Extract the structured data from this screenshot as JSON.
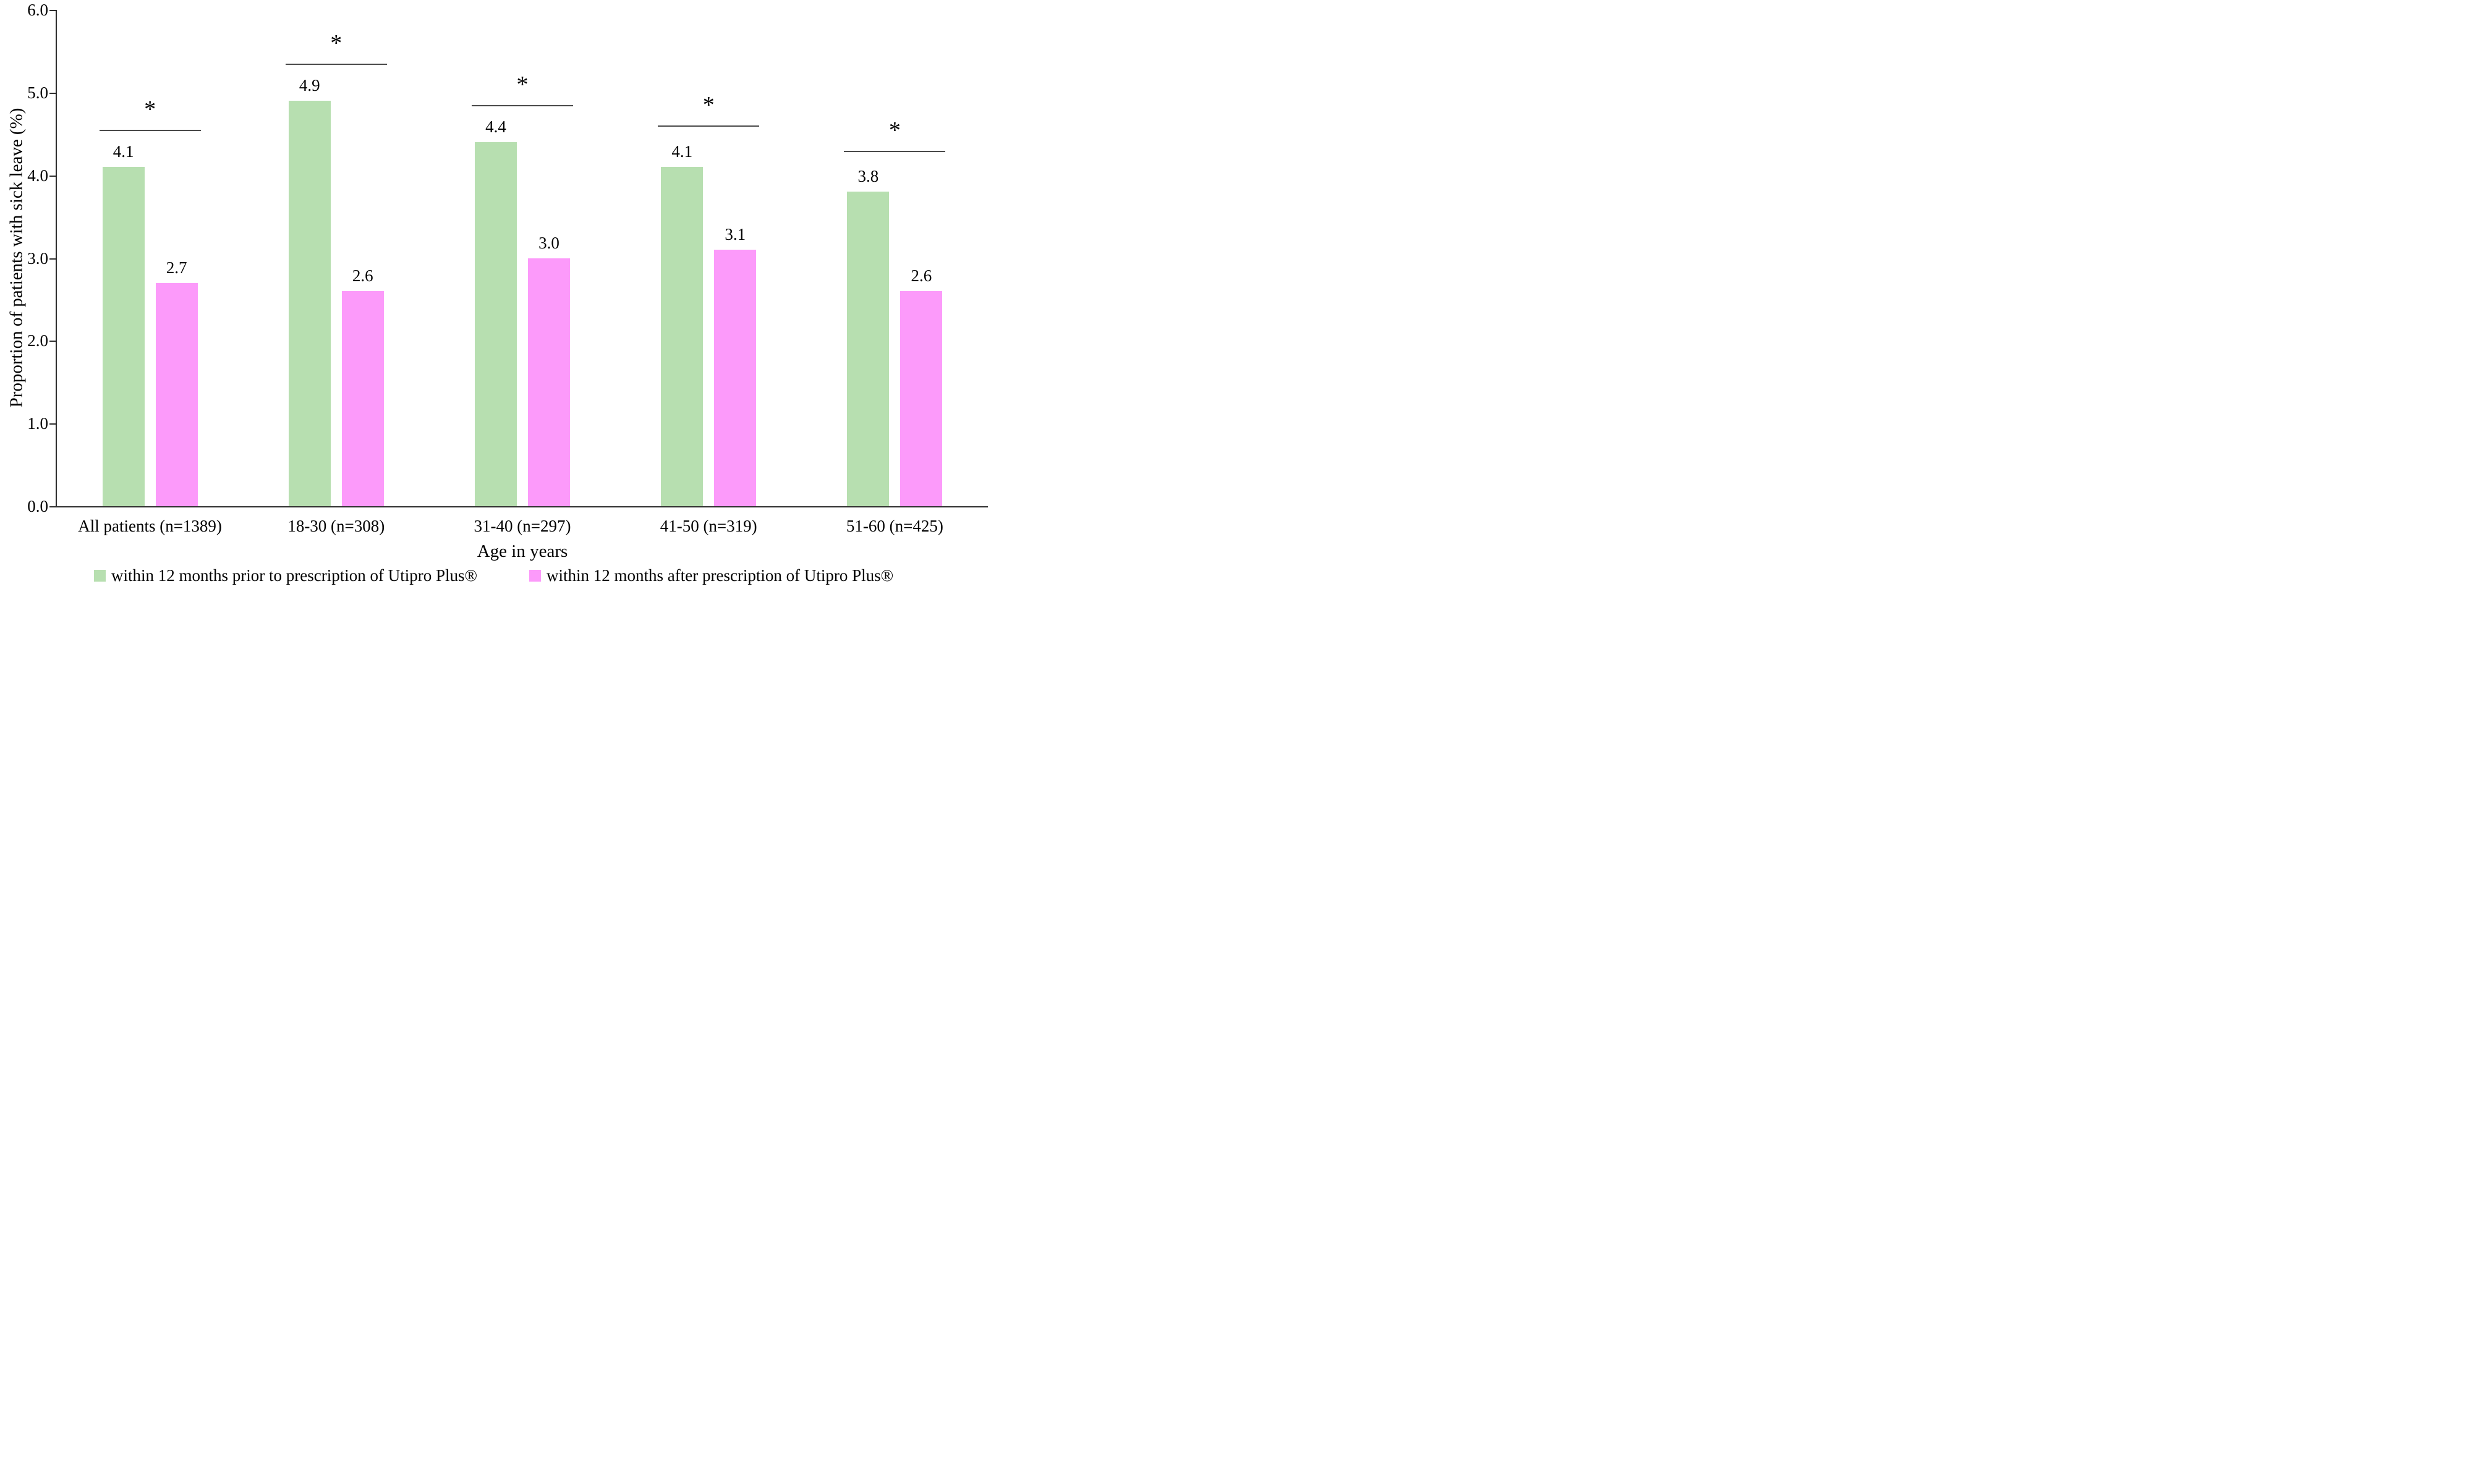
{
  "chart_data": {
    "type": "bar",
    "title": "",
    "xlabel": "Age in years",
    "ylabel": "Proportion of patients with sick leave (%)",
    "ylim": [
      0.0,
      6.0
    ],
    "ytick_labels": [
      "0.0",
      "1.0",
      "2.0",
      "3.0",
      "4.0",
      "5.0",
      "6.0"
    ],
    "grid": false,
    "legend_position": "bottom",
    "categories": [
      "All patients (n=1389)",
      "18-30 (n=308)",
      "31-40 (n=297)",
      "41-50 (n=319)",
      "51-60 (n=425)"
    ],
    "series": [
      {
        "name": "within 12 months prior to prescription of Utipro Plus®",
        "color": "#b7dfb0",
        "values": [
          4.1,
          4.9,
          4.4,
          4.1,
          3.8
        ],
        "value_labels": [
          "4.1",
          "4.9",
          "4.4",
          "4.1",
          "3.8"
        ]
      },
      {
        "name": "within 12 months after prescription of Utipro Plus®",
        "color": "#fc9afa",
        "values": [
          2.7,
          2.6,
          3.0,
          3.1,
          2.6
        ],
        "value_labels": [
          "2.7",
          "2.6",
          "3.0",
          "3.1",
          "2.6"
        ]
      }
    ],
    "significance": {
      "marker": "*",
      "line_y": [
        4.55,
        5.35,
        4.85,
        4.6,
        4.3
      ]
    }
  }
}
